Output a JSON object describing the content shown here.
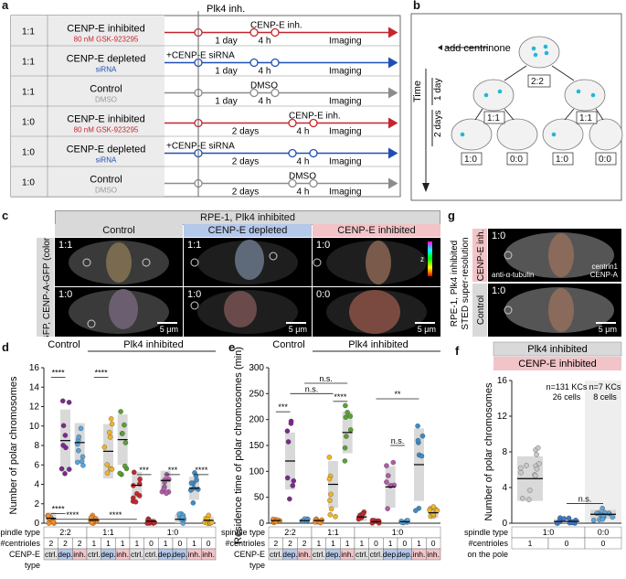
{
  "panel_letters": [
    "a",
    "b",
    "c",
    "d",
    "e",
    "f",
    "g"
  ],
  "panel_a": {
    "plk4_label": "Plk4 inh.",
    "rows": [
      {
        "ratio": "1:1",
        "name": "CENP-E inhibited",
        "sub": "80 nM GSK-923295",
        "sub_color": "#c4262e",
        "color": "#c4262e",
        "step1": "1 day",
        "step2": "4 h",
        "mid_label": "CENP-E inh.",
        "end_label": "Imaging"
      },
      {
        "ratio": "1:1",
        "name": "CENP-E depleted",
        "sub": "siRNA",
        "sub_color": "#1f4fb4",
        "color": "#1f4fb4",
        "step1": "1 day",
        "step2": "4 h",
        "mid_label": "+CENP-E siRNA",
        "end_label": "Imaging"
      },
      {
        "ratio": "1:1",
        "name": "Control",
        "sub": "DMSO",
        "sub_color": "#999999",
        "color": "#8c8c8c",
        "step1": "1 day",
        "step2": "4 h",
        "mid_label": "DMSO",
        "end_label": "Imaging"
      },
      {
        "ratio": "1:0",
        "name": "CENP-E inhibited",
        "sub": "80 nM GSK-923295",
        "sub_color": "#c4262e",
        "color": "#c4262e",
        "step1": "2 days",
        "step2": "4 h",
        "mid_label": "CENP-E inh.",
        "end_label": "Imaging"
      },
      {
        "ratio": "1:0",
        "name": "CENP-E depleted",
        "sub": "siRNA",
        "sub_color": "#1f4fb4",
        "color": "#1f4fb4",
        "step1": "2 days",
        "step2": "4 h",
        "mid_label": "+CENP-E siRNA",
        "end_label": "Imaging"
      },
      {
        "ratio": "1:0",
        "name": "Control",
        "sub": "DMSO",
        "sub_color": "#999999",
        "color": "#8c8c8c",
        "step1": "2 days",
        "step2": "4 h",
        "mid_label": "DMSO",
        "end_label": "Imaging"
      }
    ]
  },
  "panel_b": {
    "add_label": "add centrinone",
    "time_label": "Time",
    "day1": "1 day",
    "day2": "2 days",
    "ratio_top": "2:2",
    "ratio_mid_left": "1:1",
    "ratio_mid_right": "1:1",
    "ratio_bottom": [
      "1:0",
      "0:0",
      "1:0",
      "0:0"
    ]
  },
  "panel_c": {
    "title": "RPE-1, Plk4 inhibited",
    "columns": [
      "Control",
      "CENP-E depleted",
      "CENP-E inhibited"
    ],
    "column_colors": [
      "#d9d9d9",
      "#b4c8ea",
      "#f2c4c8"
    ],
    "side_label": "centrin1-GFP, CENP-A-GFP (colors = depth)",
    "tiles": [
      [
        "1:1",
        "1:1",
        "1:0"
      ],
      [
        "1:0",
        "1:0",
        "0:0"
      ]
    ],
    "scalebar": "5 μm",
    "colorbar_label": "z"
  },
  "panel_g": {
    "side_label_1": "RPE-1, Plk4 inhibited",
    "side_label_2": "STED super-resolution",
    "rows": [
      {
        "label": "CENP-E inh.",
        "ratio": "1:0",
        "bg": "#f2c4c8"
      },
      {
        "label": "Control",
        "ratio": "1:0",
        "bg": "#d9d9d9"
      }
    ],
    "tubulin_label": "anti-α-tubulin",
    "centrin_label": "centrin1",
    "cenpa_label": "CENP-A",
    "scalebar": "5 μm"
  },
  "chart_data": [
    {
      "panel": "d",
      "type": "scatter",
      "ylabel": "Number of polar chromosomes",
      "ylim": [
        0,
        16
      ],
      "yticks": [
        0,
        2,
        4,
        6,
        8,
        10,
        12,
        14,
        16
      ],
      "group_headers": [
        "Control",
        "Plk4 inhibited"
      ],
      "spindle_type": [
        "2:2",
        "1:1",
        "1:0"
      ],
      "centrioles": [
        "2",
        "2",
        "2",
        "1",
        "1",
        "1",
        "1",
        "0",
        "1",
        "0",
        "1",
        "0"
      ],
      "cenpe_type": [
        "ctrl.",
        "dep.",
        "inh.",
        "ctrl.",
        "dep.",
        "inh.",
        "ctrl.",
        "ctrl.",
        "dep.",
        "dep.",
        "inh.",
        "inh."
      ],
      "series_colors": [
        "#f08c28",
        "#7a2a8c",
        "#5aa5dc",
        "#f08c28",
        "#f0b428",
        "#5aa032",
        "#c0282d",
        "#c0282d",
        "#b45aaa",
        "#5aa5dc",
        "#3c8cc8",
        "#f0b428"
      ],
      "medians": [
        0.5,
        8.5,
        8.3,
        0.3,
        7.4,
        8.6,
        3.9,
        0.2,
        4.4,
        0.4,
        3.6,
        0.3
      ],
      "spread": [
        0.6,
        3.2,
        2.0,
        0.4,
        2.8,
        2.6,
        1.4,
        0.3,
        1.0,
        0.5,
        1.2,
        0.4
      ],
      "significance": [
        "****",
        "****",
        "****",
        "****",
        "***",
        "***",
        "****",
        "****"
      ]
    },
    {
      "panel": "e",
      "type": "scatter",
      "ylabel": "Residence time of polar chromosomes (min)",
      "ylim": [
        0,
        300
      ],
      "yticks": [
        0,
        50,
        100,
        150,
        200,
        250,
        300
      ],
      "group_headers": [
        "Control",
        "Plk4 inhibited"
      ],
      "spindle_type": [
        "2:2",
        "1:1",
        "1:0"
      ],
      "centrioles": [
        "2",
        "2",
        "2",
        "1",
        "1",
        "1",
        "1",
        "0",
        "1",
        "0",
        "1",
        "0"
      ],
      "cenpe_type": [
        "ctrl.",
        "dep.",
        "inh.",
        "ctrl.",
        "dep.",
        "inh.",
        "ctrl.",
        "ctrl.",
        "dep.",
        "dep.",
        "inh.",
        "inh."
      ],
      "series_colors": [
        "#f08c28",
        "#7a2a8c",
        "#5aa5dc",
        "#f08c28",
        "#f0b428",
        "#5aa032",
        "#c0282d",
        "#c0282d",
        "#b45aaa",
        "#5aa5dc",
        "#3c8cc8",
        "#f0b428"
      ],
      "medians": [
        5,
        120,
        5,
        5,
        75,
        175,
        12,
        3,
        70,
        3,
        113,
        20
      ],
      "spread": [
        3,
        55,
        3,
        3,
        45,
        40,
        8,
        2,
        40,
        2,
        70,
        10
      ],
      "significance": [
        "***",
        "n.s.",
        "n.s.",
        "****",
        "n.s.",
        "**"
      ]
    },
    {
      "panel": "f",
      "type": "scatter",
      "title": "Plk4 inhibited",
      "subtitle": "CENP-E inhibited",
      "ylabel": "Number of polar chromosomes",
      "ylim": [
        0,
        16
      ],
      "yticks": [
        0,
        4,
        8,
        12,
        16
      ],
      "annotations": [
        "n=131 KCs",
        "26 cells",
        "n=7 KCs",
        "8 cells"
      ],
      "spindle_type": [
        "1:0",
        "0:0"
      ],
      "centrioles_on_pole": [
        "1",
        "0",
        "0"
      ],
      "series_colors": [
        "#c8c8c8",
        "#3c78c8",
        "#5aa5dc"
      ],
      "medians": [
        5.0,
        0.2,
        1.0
      ],
      "spread": [
        2.5,
        0.3,
        0.5
      ],
      "significance": [
        "n.s."
      ]
    }
  ],
  "axis_row_labels": {
    "spindle": "spindle type",
    "centrioles": "#centrioles",
    "cenpe": "CENP-E",
    "type": "type",
    "on_pole": "on the pole"
  }
}
